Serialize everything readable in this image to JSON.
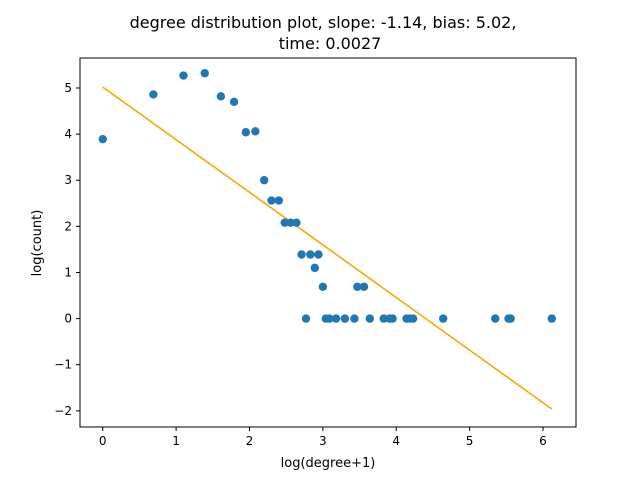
{
  "chart_data": {
    "type": "scatter",
    "title_line1": "degree distribution plot, slope: -1.14, bias: 5.02,",
    "title_line2": "time: 0.0027",
    "xlabel": "log(degree+1)",
    "ylabel": "log(count)",
    "xlim": [
      -0.31,
      6.45
    ],
    "ylim": [
      -2.35,
      5.65
    ],
    "xticks": [
      0,
      1,
      2,
      3,
      4,
      5,
      6
    ],
    "yticks": [
      -2,
      -1,
      0,
      1,
      2,
      3,
      4,
      5
    ],
    "grid": false,
    "colors": {
      "points": "#1f77b4",
      "fit_line": "#ffa500"
    },
    "points": {
      "x": [
        0.0,
        0.69,
        1.1,
        1.39,
        1.61,
        1.79,
        1.95,
        2.08,
        2.2,
        2.3,
        2.4,
        2.48,
        2.56,
        2.64,
        2.71,
        2.77,
        2.83,
        2.89,
        2.94,
        3.0,
        3.04,
        3.09,
        3.18,
        3.3,
        3.43,
        3.47,
        3.56,
        3.64,
        3.83,
        3.91,
        3.95,
        4.14,
        4.19,
        4.23,
        4.64,
        5.35,
        5.53,
        5.56,
        6.12
      ],
      "y": [
        3.89,
        4.86,
        5.27,
        5.32,
        4.82,
        4.7,
        4.04,
        4.06,
        3.0,
        2.56,
        2.56,
        2.08,
        2.08,
        2.08,
        1.39,
        0.0,
        1.39,
        1.1,
        1.39,
        0.69,
        0.0,
        0.0,
        0.0,
        0.0,
        0.0,
        0.69,
        0.69,
        0.0,
        0.0,
        0.0,
        0.0,
        0.0,
        0.0,
        0.0,
        0.0,
        0.0,
        0.0,
        0.0,
        0.0
      ]
    },
    "fit_line": {
      "x": [
        0.0,
        6.12
      ],
      "y": [
        5.02,
        -1.96
      ]
    }
  }
}
